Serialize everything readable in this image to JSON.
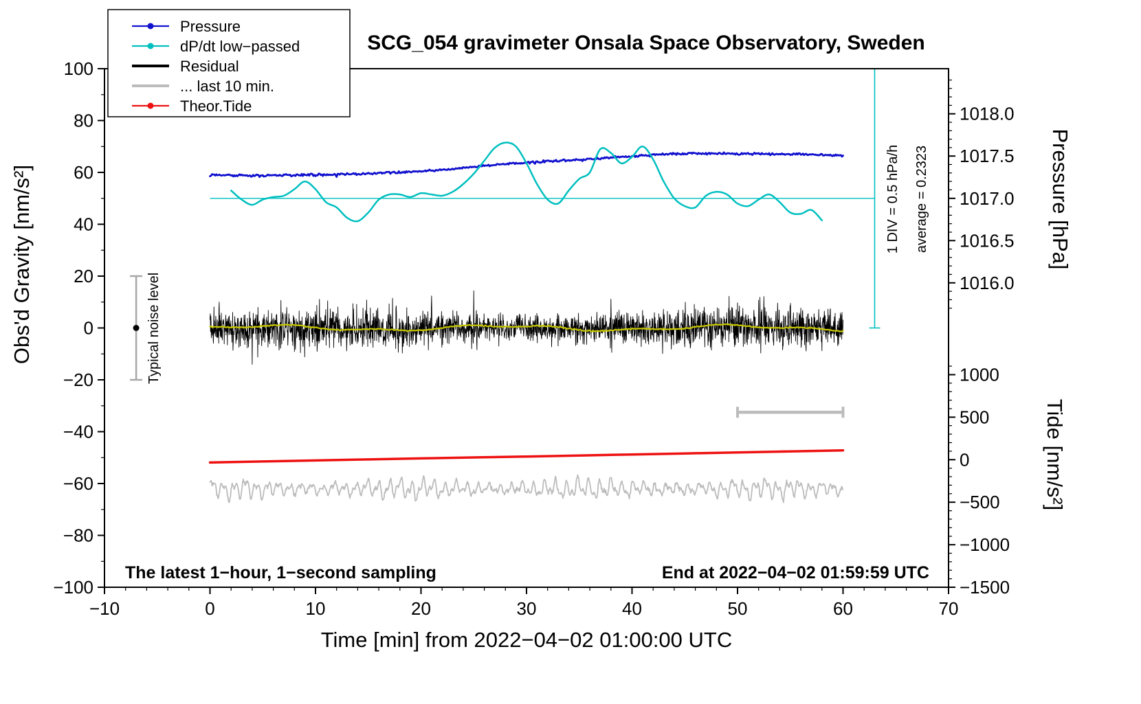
{
  "chart_data": {
    "type": "line",
    "title": "SCG_054 gravimeter Onsala Space Observatory, Sweden",
    "xlabel": "Time [min] from 2022−04−02 01:00:00 UTC",
    "ylabel_left": "Obs'd Gravity [nm/s²]",
    "ylabel_right_pressure": "Pressure [hPa]",
    "ylabel_right_tide": "Tide [nm/s²]",
    "xlim": [
      -10,
      70
    ],
    "ylim": [
      -100,
      100
    ],
    "grid": false,
    "x_ticks": [
      "−10",
      "0",
      "10",
      "20",
      "30",
      "40",
      "50",
      "60",
      "70"
    ],
    "x_minor_step": 2,
    "y_ticks": [
      "−100",
      "−80",
      "−60",
      "−40",
      "−20",
      "0",
      "20",
      "40",
      "60",
      "80",
      "100"
    ],
    "y_minor_step": 10,
    "pressure_axis": {
      "ticks": [
        "1016.0",
        "1016.5",
        "1017.0",
        "1017.5",
        "1018.0"
      ],
      "minor_step": 0.1,
      "minor_from": 1015.7,
      "minor_to": 1018.4,
      "ref_value": 1017.0,
      "ref_gravity": 50,
      "gravity_per_hpa": 32.6
    },
    "tide_axis": {
      "ticks": [
        "−1500",
        "−1000",
        "−500",
        "0",
        "500",
        "1000"
      ],
      "minor_step": 100,
      "minor_from": -1500,
      "minor_to": 1100,
      "ref_value": -1500,
      "ref_gravity": -100,
      "gravity_per_unit": 0.0328
    },
    "annotations": {
      "div_scale": "1 DIV = 0.5 hPa/h",
      "average": "average = 0.2323",
      "noise_label": "Typical noise level",
      "sampling_note": "The latest 1−hour, 1−second sampling",
      "end_note": "End at 2022−04−02 01:59:59 UTC"
    },
    "colors": {
      "blue": "#1010CE",
      "cyan": "#00BFBF",
      "black": "#000000",
      "gray": "#BCBCBC",
      "gray_dark": "#A8A8A8",
      "red": "#EE1111",
      "yellow": "#C8C800"
    },
    "legend": [
      {
        "label": "Pressure",
        "color": "#1010CE",
        "marker": "dot-line"
      },
      {
        "label": "dP/dt low−passed",
        "color": "#00BFBF",
        "marker": "dot-line"
      },
      {
        "label": "Residual",
        "color": "#000000",
        "marker": "line"
      },
      {
        "label": "... last 10 min.",
        "color": "#BCBCBC",
        "marker": "line"
      },
      {
        "label": "Theor.Tide",
        "color": "#EE1111",
        "marker": "dot-line"
      }
    ],
    "series": {
      "pressure": {
        "name": "Pressure",
        "color": "#1010CE",
        "x_start": 0,
        "x_step": 2,
        "values_gravity": [
          59.0,
          58.9,
          58.7,
          58.8,
          58.9,
          59.0,
          59.2,
          59.4,
          59.7,
          60.0,
          60.4,
          61.0,
          61.7,
          62.5,
          63.2,
          63.8,
          64.3,
          64.7,
          65.2,
          65.7,
          66.2,
          66.8,
          67.2,
          67.3,
          67.3,
          67.2,
          67.2,
          67.1,
          67.0,
          66.8,
          66.5
        ],
        "hpa_start": 1017.27,
        "hpa_end": 1017.51
      },
      "dpdt": {
        "name": "dP/dt low−passed",
        "color": "#00BFBF",
        "x_start": 2,
        "x_step": 1,
        "zero_line_gravity": 50,
        "values": [
          53,
          49.5,
          47.5,
          49.5,
          50.5,
          51,
          53.5,
          56.5,
          53.5,
          48.5,
          46.5,
          42.5,
          41.2,
          44.5,
          49.5,
          51.5,
          51.5,
          50.5,
          52,
          51.5,
          51,
          52.5,
          55.5,
          59.5,
          64.5,
          69.5,
          71.5,
          70,
          63.5,
          55.5,
          49.5,
          48,
          53,
          57.5,
          60,
          69,
          67.5,
          63.5,
          66,
          70,
          65,
          56.5,
          50,
          47,
          46.5,
          51,
          52.5,
          51.5,
          48,
          47,
          49.5,
          51.5,
          48.5,
          44.5,
          44,
          45.5,
          41.5
        ]
      },
      "residual": {
        "name": "Residual",
        "color": "#000000",
        "mean": 0,
        "std": 3.1,
        "dt": 0.025,
        "x_range": [
          0,
          60
        ],
        "spikes": [
          {
            "x": 21,
            "amp": 11
          },
          {
            "x": 25,
            "amp": 15
          },
          {
            "x": 25.3,
            "amp": -13
          },
          {
            "x": 33,
            "amp": -10
          },
          {
            "x": 38,
            "amp": 13
          },
          {
            "x": 45,
            "amp": -11
          },
          {
            "x": 52,
            "amp": 10
          }
        ]
      },
      "residual_lowpass": {
        "name": "Residual low-passed",
        "color": "#C8C800",
        "mean": 0,
        "amplitude": 1.2
      },
      "last10": {
        "name": "... last 10 min.",
        "color": "#BCBCBC",
        "mean": -62,
        "amplitude": 4,
        "x_range": [
          0,
          60
        ]
      },
      "tide": {
        "name": "Theor.Tide",
        "color": "#EE1111",
        "points": [
          [
            0,
            -51.9
          ],
          [
            10,
            -51.1
          ],
          [
            20,
            -50.3
          ],
          [
            30,
            -49.6
          ],
          [
            40,
            -48.8
          ],
          [
            50,
            -48.0
          ],
          [
            60,
            -47.2
          ]
        ]
      }
    },
    "noise_marker": {
      "x": -7,
      "center": 0,
      "halfwidth": 20
    },
    "window_bar": {
      "x_start": 50,
      "x_end": 60,
      "gravity": -32.5
    },
    "scale_bar": {
      "x": 63,
      "g_top": 100,
      "g_bottom": 0,
      "mid_gravity": 50
    }
  }
}
